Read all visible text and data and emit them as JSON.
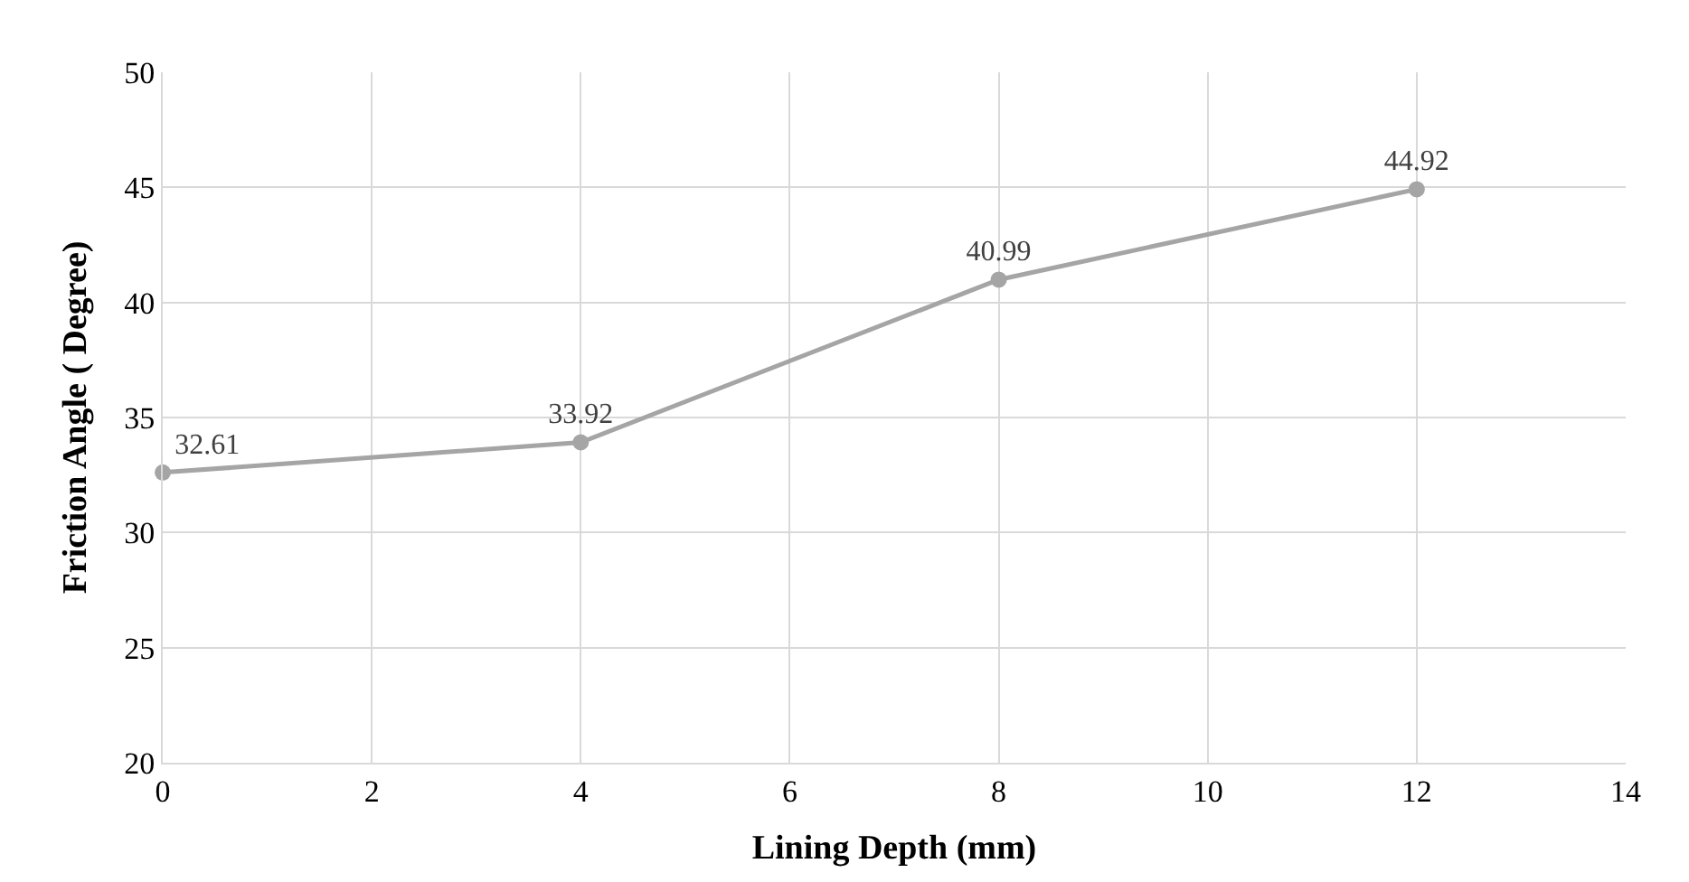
{
  "chart_data": {
    "type": "line",
    "xlabel": "Lining Depth (mm)",
    "ylabel": "Friction Angle ( Degree)",
    "x": [
      0,
      4,
      8,
      12
    ],
    "series": [
      {
        "color": "#a5a5a5",
        "values": [
          32.61,
          33.92,
          40.99,
          44.92
        ]
      }
    ],
    "xlim": [
      0,
      14
    ],
    "xticks": [
      0,
      2,
      4,
      6,
      8,
      10,
      12,
      14
    ],
    "ylim": [
      20,
      50
    ],
    "yticks": [
      20,
      25,
      30,
      35,
      40,
      45,
      50
    ],
    "grid": true,
    "marker": "circle",
    "line_style": "solid",
    "data_labels": true
  }
}
